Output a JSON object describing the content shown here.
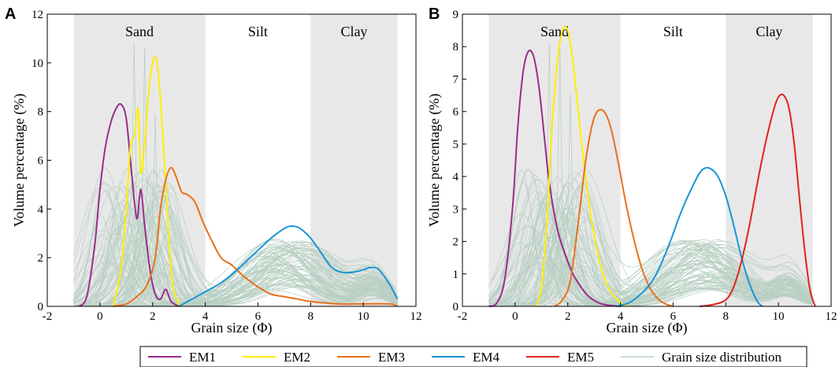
{
  "legend": [
    {
      "name": "EM1",
      "color": "#9b2c8c"
    },
    {
      "name": "EM2",
      "color": "#ffee00"
    },
    {
      "name": "EM3",
      "color": "#e8711d"
    },
    {
      "name": "EM4",
      "color": "#1a94d6"
    },
    {
      "name": "EM5",
      "color": "#e2231a"
    },
    {
      "name": "Grain size distribution",
      "color": "#b8cfc3"
    }
  ],
  "chart_data": [
    {
      "panel": "A",
      "type": "line",
      "xlabel": "Grain size (Φ)",
      "ylabel": "Volume percentage (%)",
      "xlim": [
        -2,
        12
      ],
      "ylim": [
        0,
        12
      ],
      "xticks": [
        -2,
        0,
        2,
        4,
        6,
        8,
        10,
        12
      ],
      "yticks": [
        0,
        2,
        4,
        6,
        8,
        10,
        12
      ],
      "bands": [
        {
          "label": "Sand",
          "from": -1,
          "to": 4,
          "shaded": true
        },
        {
          "label": "Silt",
          "from": 4,
          "to": 8,
          "shaded": false
        },
        {
          "label": "Clay",
          "from": 8,
          "to": 11.3,
          "shaded": true
        }
      ],
      "series": [
        {
          "name": "EM1",
          "color": "#9b2c8c",
          "x": [
            -0.8,
            -0.5,
            -0.2,
            0.0,
            0.2,
            0.4,
            0.6,
            0.8,
            1.0,
            1.2,
            1.4,
            1.55,
            1.7,
            1.9,
            2.1,
            2.3,
            2.5,
            2.7,
            3.0
          ],
          "y": [
            0,
            0.4,
            2.5,
            4.8,
            6.5,
            7.5,
            8.1,
            8.3,
            7.7,
            5.5,
            3.6,
            4.8,
            3.3,
            1.5,
            0.5,
            0.3,
            0.7,
            0.2,
            0
          ]
        },
        {
          "name": "EM2",
          "color": "#ffee00",
          "x": [
            0.5,
            0.8,
            1.0,
            1.15,
            1.3,
            1.45,
            1.55,
            1.7,
            1.85,
            2.0,
            2.15,
            2.3,
            2.5,
            2.7,
            2.9,
            3.1
          ],
          "y": [
            0,
            1.5,
            4.0,
            6.5,
            7.0,
            8.1,
            5.5,
            6.7,
            8.8,
            10.0,
            10.1,
            8.5,
            5.0,
            1.5,
            0.3,
            0
          ]
        },
        {
          "name": "EM3",
          "color": "#e8711d",
          "x": [
            0.5,
            1.0,
            1.4,
            1.8,
            2.1,
            2.3,
            2.5,
            2.7,
            2.9,
            3.1,
            3.3,
            3.6,
            3.9,
            4.2,
            4.6,
            5.0,
            5.5,
            6.0,
            6.5,
            7.0,
            7.5,
            8.0,
            9.0,
            10.0,
            11.0,
            11.3
          ],
          "y": [
            0,
            0.1,
            0.4,
            0.9,
            2.0,
            4.0,
            5.2,
            5.7,
            5.3,
            4.7,
            4.6,
            4.3,
            3.5,
            2.8,
            2.0,
            1.7,
            1.2,
            0.8,
            0.5,
            0.4,
            0.3,
            0.2,
            0.1,
            0.1,
            0.1,
            0
          ]
        },
        {
          "name": "EM4",
          "color": "#1a94d6",
          "x": [
            3.0,
            3.5,
            4.0,
            4.5,
            5.0,
            5.5,
            6.0,
            6.5,
            7.0,
            7.3,
            7.6,
            8.0,
            8.4,
            8.8,
            9.2,
            9.6,
            10.0,
            10.3,
            10.6,
            11.0,
            11.3
          ],
          "y": [
            0,
            0.3,
            0.6,
            0.9,
            1.3,
            1.8,
            2.3,
            2.8,
            3.2,
            3.3,
            3.2,
            2.8,
            2.2,
            1.6,
            1.4,
            1.4,
            1.5,
            1.6,
            1.5,
            0.9,
            0.3
          ]
        }
      ]
    },
    {
      "panel": "B",
      "type": "line",
      "xlabel": "Grain size (Φ)",
      "ylabel": "Volume percentage (%)",
      "xlim": [
        -2,
        12
      ],
      "ylim": [
        0,
        9
      ],
      "xticks": [
        -2,
        0,
        2,
        4,
        6,
        8,
        10,
        12
      ],
      "yticks": [
        0,
        1,
        2,
        3,
        4,
        5,
        6,
        7,
        8,
        9
      ],
      "bands": [
        {
          "label": "Sand",
          "from": -1,
          "to": 4,
          "shaded": true
        },
        {
          "label": "Silt",
          "from": 4,
          "to": 8,
          "shaded": false
        },
        {
          "label": "Clay",
          "from": 8,
          "to": 11.3,
          "shaded": true
        }
      ],
      "series": [
        {
          "name": "EM1",
          "color": "#9b2c8c",
          "x": [
            -1.0,
            -0.7,
            -0.4,
            -0.1,
            0.1,
            0.3,
            0.5,
            0.7,
            0.9,
            1.1,
            1.3,
            1.6,
            1.9,
            2.2,
            2.5,
            2.8,
            3.2,
            3.6,
            4.0
          ],
          "y": [
            0,
            0.1,
            0.8,
            3.0,
            5.5,
            7.2,
            7.85,
            7.7,
            6.8,
            5.3,
            3.8,
            2.4,
            1.6,
            1.0,
            0.6,
            0.3,
            0.1,
            0.03,
            0
          ]
        },
        {
          "name": "EM2",
          "color": "#ffee00",
          "x": [
            0.8,
            1.0,
            1.2,
            1.4,
            1.6,
            1.8,
            2.0,
            2.2,
            2.4,
            2.6,
            2.8,
            3.0,
            3.3,
            3.6,
            4.0,
            4.3
          ],
          "y": [
            0,
            0.6,
            2.5,
            5.5,
            7.5,
            8.5,
            8.5,
            7.5,
            6.0,
            4.5,
            3.2,
            2.2,
            1.1,
            0.5,
            0.1,
            0
          ]
        },
        {
          "name": "EM3",
          "color": "#e8711d",
          "x": [
            1.5,
            1.8,
            2.1,
            2.4,
            2.7,
            3.0,
            3.3,
            3.6,
            3.9,
            4.2,
            4.5,
            4.8,
            5.1,
            5.4,
            5.7,
            6.0
          ],
          "y": [
            0,
            0.2,
            0.8,
            2.6,
            4.6,
            5.8,
            6.05,
            5.6,
            4.5,
            3.2,
            2.1,
            1.2,
            0.6,
            0.25,
            0.08,
            0
          ]
        },
        {
          "name": "EM4",
          "color": "#1a94d6",
          "x": [
            3.8,
            4.3,
            4.8,
            5.3,
            5.8,
            6.3,
            6.8,
            7.1,
            7.4,
            7.7,
            8.0,
            8.3,
            8.6,
            8.9,
            9.2,
            9.4
          ],
          "y": [
            0,
            0.1,
            0.4,
            0.9,
            1.8,
            2.9,
            3.8,
            4.2,
            4.25,
            4.0,
            3.4,
            2.5,
            1.5,
            0.7,
            0.15,
            0
          ]
        },
        {
          "name": "EM5",
          "color": "#e2231a",
          "x": [
            7.0,
            7.5,
            8.0,
            8.3,
            8.6,
            8.9,
            9.2,
            9.5,
            9.8,
            10.0,
            10.2,
            10.4,
            10.6,
            10.8,
            11.0,
            11.2,
            11.4
          ],
          "y": [
            0,
            0.05,
            0.2,
            0.6,
            1.4,
            2.5,
            3.8,
            5.0,
            6.0,
            6.45,
            6.5,
            6.1,
            5.0,
            3.3,
            1.7,
            0.5,
            0
          ]
        }
      ]
    }
  ]
}
